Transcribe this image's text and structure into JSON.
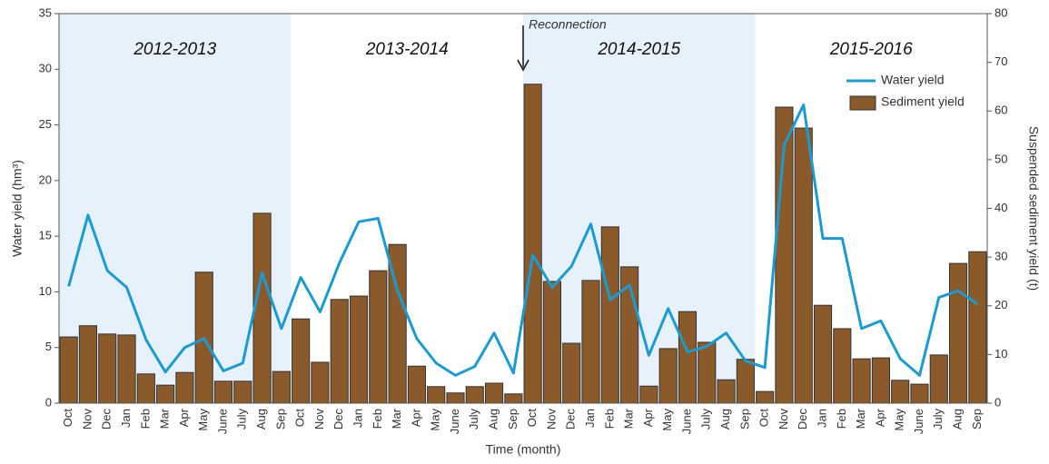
{
  "chart_data": {
    "type": "bar_line",
    "x_label": "Time (month)",
    "y_label": "Water yield (hm³)",
    "y2_label": "Suspended sediment yield (t)",
    "periods": [
      "2012-2013",
      "2013-2014",
      "2014-2015",
      "2015-2016"
    ],
    "period_shade": "#e6f1fc",
    "annotation": "Reconnection",
    "categories": [
      "Oct",
      "Nov",
      "Dec",
      "Jan",
      "Feb",
      "Mar",
      "Apr",
      "May",
      "June",
      "July",
      "Aug",
      "Sep",
      "Oct",
      "Nov",
      "Dec",
      "Jan",
      "Feb",
      "Mar",
      "Apr",
      "May",
      "June",
      "July",
      "Aug",
      "Sep",
      "Oct",
      "Nov",
      "Dec",
      "Jan",
      "Feb",
      "Mar",
      "Apr",
      "May",
      "June",
      "July",
      "Aug",
      "Sep",
      "Oct",
      "Nov",
      "Dec",
      "Jan",
      "Feb",
      "Mar",
      "Apr",
      "May",
      "June",
      "July",
      "Aug",
      "Sep"
    ],
    "series": [
      {
        "name": "Water yield",
        "type": "line",
        "color": "#1a9bd1",
        "axis": "y",
        "values": [
          10.5,
          16.9,
          11.9,
          10.4,
          5.7,
          2.8,
          5.0,
          5.8,
          2.9,
          3.6,
          11.7,
          6.7,
          11.3,
          8.2,
          12.6,
          16.3,
          16.6,
          10.1,
          5.8,
          3.6,
          2.5,
          3.3,
          6.3,
          2.7,
          13.3,
          10.4,
          12.3,
          16.1,
          9.3,
          10.6,
          4.3,
          8.5,
          4.6,
          5.1,
          6.3,
          3.8,
          3.2,
          23.2,
          26.8,
          14.8,
          14.8,
          6.7,
          7.4,
          4.0,
          2.5,
          9.5,
          10.1,
          8.9
        ]
      },
      {
        "name": "Sediment yield",
        "type": "bar",
        "color": "#8b5a2b",
        "axis": "y2",
        "values": [
          13.6,
          15.9,
          14.2,
          14.0,
          6.0,
          3.7,
          6.3,
          26.9,
          4.5,
          4.5,
          39.0,
          6.5,
          17.3,
          8.4,
          21.3,
          22.0,
          27.2,
          32.6,
          7.6,
          3.4,
          2.1,
          3.4,
          4.1,
          1.9,
          65.5,
          25.0,
          12.3,
          25.2,
          36.2,
          28.0,
          3.5,
          11.2,
          18.8,
          12.5,
          4.8,
          9.0,
          2.4,
          60.8,
          56.5,
          20.1,
          15.3,
          9.1,
          9.3,
          4.7,
          3.9,
          9.9,
          28.7,
          31.1
        ]
      }
    ],
    "ylim": [
      0,
      35
    ],
    "yticks": [
      0,
      5,
      10,
      15,
      20,
      25,
      30,
      35
    ],
    "y2lim": [
      0,
      80
    ],
    "y2ticks": [
      0,
      10,
      20,
      30,
      40,
      50,
      60,
      70,
      80
    ],
    "legend": "upper right"
  }
}
